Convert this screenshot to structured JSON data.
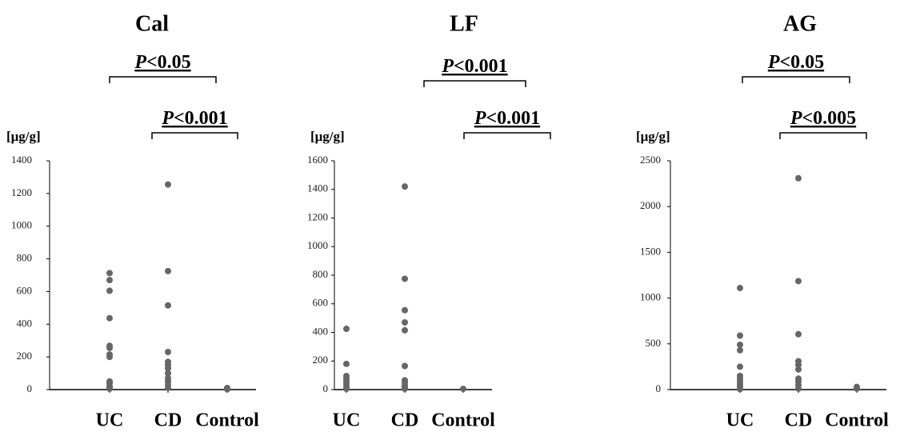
{
  "chart_data": [
    {
      "type": "strip",
      "title": "Cal",
      "y_label": "[μg/g]",
      "annotations": [
        "P<0.05",
        "P<0.001"
      ],
      "categories": [
        "UC",
        "CD",
        "Control"
      ],
      "color": "#666666",
      "values": [
        [
          713,
          670,
          605,
          437,
          268,
          255,
          215,
          200,
          50,
          40,
          20,
          10,
          5
        ],
        [
          1255,
          725,
          515,
          230,
          170,
          150,
          130,
          100,
          70,
          50,
          30,
          10
        ],
        [
          10,
          5,
          2
        ]
      ],
      "ylim": [
        0,
        1400
      ],
      "yticks": [
        0,
        200,
        400,
        600,
        800,
        1000,
        1200,
        1400
      ]
    },
    {
      "type": "strip",
      "title": "LF",
      "y_label": "[μg/g]",
      "annotations": [
        "P<0.001",
        "P<0.001"
      ],
      "categories": [
        "UC",
        "CD",
        "Control"
      ],
      "color": "#666666",
      "values": [
        [
          425,
          180,
          95,
          80,
          60,
          40,
          20,
          5
        ],
        [
          1420,
          775,
          555,
          470,
          415,
          165,
          65,
          50,
          30,
          15,
          5
        ],
        [
          5
        ]
      ],
      "ylim": [
        0,
        1600
      ],
      "yticks": [
        0,
        200,
        400,
        600,
        800,
        1000,
        1200,
        1400,
        1600
      ]
    },
    {
      "type": "strip",
      "title": "AG",
      "y_label": "[μg/g]",
      "annotations": [
        "P<0.05",
        "P<0.005"
      ],
      "categories": [
        "UC",
        "CD",
        "Control"
      ],
      "color": "#666666",
      "values": [
        [
          1110,
          590,
          490,
          430,
          250,
          150,
          120,
          90,
          60,
          30,
          5
        ],
        [
          2310,
          1185,
          605,
          310,
          270,
          220,
          120,
          90,
          50,
          10
        ],
        [
          30,
          10
        ]
      ],
      "ylim": [
        0,
        2500
      ],
      "yticks": [
        0,
        500,
        1000,
        1500,
        2000,
        2500
      ]
    }
  ]
}
